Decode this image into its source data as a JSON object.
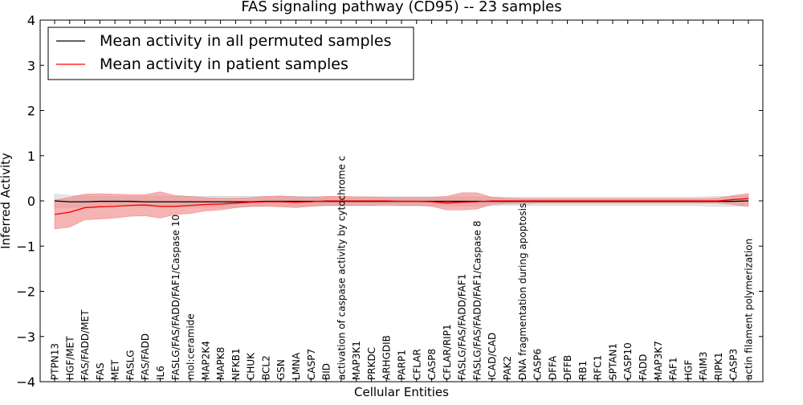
{
  "chart_data": {
    "type": "line",
    "title": "FAS signaling pathway (CD95) -- 23 samples",
    "xlabel": "Cellular Entities",
    "ylabel": "Inferred Activity",
    "ylim": [
      -4,
      4
    ],
    "yticks": [
      -4,
      -3,
      -2,
      -1,
      0,
      1,
      2,
      3,
      4
    ],
    "ytick_labels": [
      "−4",
      "−3",
      "−2",
      "−1",
      "0",
      "1",
      "2",
      "3",
      "4"
    ],
    "grid": false,
    "legend_position": "top-left",
    "categories": [
      "PTPN13",
      "HGF/MET",
      "FAS/FADD/MET",
      "FAS",
      "MET",
      "FASLG",
      "FAS/FADD",
      "IL6",
      "FASLG/FAS/FADD/FAF1/Caspase 10",
      "mol:ceramide",
      "MAP2K4",
      "MAPK8",
      "NFKB1",
      "CHUK",
      "BCL2",
      "GSN",
      "LMNA",
      "CASP7",
      "BID",
      "activation of caspase activity by cytochrome c",
      "MAP3K1",
      "PRKDC",
      "ARHGDIB",
      "PARP1",
      "CFLAR",
      "CASP8",
      "CFLAR/RIP1",
      "FASLG/FAS/FADD/FAF1",
      "FASLG/FAS/FADD/FAF1/Caspase 8",
      "ICAD/CAD",
      "PAK2",
      "DNA fragmentation during apoptosis",
      "CASP6",
      "DFFA",
      "DFFB",
      "RB1",
      "RFC1",
      "SPTAN1",
      "CASP10",
      "FADD",
      "MAP3K7",
      "FAF1",
      "HGF",
      "FAIM3",
      "RIPK1",
      "CASP3",
      "actin filament polymerization"
    ],
    "series": [
      {
        "name": "Mean activity in all permuted samples",
        "color": "#000000",
        "band_color": "#cccccc",
        "values": [
          0.0,
          -0.02,
          -0.02,
          -0.01,
          -0.01,
          -0.01,
          -0.02,
          -0.02,
          -0.02,
          -0.02,
          -0.02,
          -0.02,
          -0.02,
          -0.02,
          -0.01,
          -0.01,
          -0.01,
          -0.01,
          -0.01,
          -0.01,
          -0.01,
          -0.01,
          -0.01,
          -0.01,
          -0.01,
          -0.01,
          -0.01,
          -0.01,
          -0.01,
          -0.01,
          -0.01,
          -0.01,
          -0.01,
          -0.01,
          -0.01,
          -0.01,
          -0.01,
          -0.01,
          -0.01,
          -0.01,
          -0.01,
          -0.01,
          -0.01,
          -0.01,
          -0.01,
          -0.01,
          0.0
        ],
        "lower": [
          -0.15,
          -0.14,
          -0.13,
          -0.12,
          -0.12,
          -0.12,
          -0.13,
          -0.14,
          -0.14,
          -0.14,
          -0.14,
          -0.14,
          -0.14,
          -0.13,
          -0.12,
          -0.12,
          -0.12,
          -0.12,
          -0.11,
          -0.11,
          -0.11,
          -0.11,
          -0.11,
          -0.11,
          -0.11,
          -0.11,
          -0.11,
          -0.11,
          -0.11,
          -0.11,
          -0.1,
          -0.1,
          -0.1,
          -0.1,
          -0.1,
          -0.1,
          -0.1,
          -0.1,
          -0.1,
          -0.1,
          -0.1,
          -0.1,
          -0.1,
          -0.11,
          -0.12,
          -0.12,
          -0.12
        ],
        "upper": [
          0.15,
          0.12,
          0.11,
          0.1,
          0.1,
          0.1,
          0.1,
          0.1,
          0.1,
          0.1,
          0.1,
          0.1,
          0.1,
          0.1,
          0.1,
          0.1,
          0.1,
          0.1,
          0.09,
          0.09,
          0.09,
          0.09,
          0.09,
          0.09,
          0.09,
          0.09,
          0.09,
          0.09,
          0.09,
          0.09,
          0.08,
          0.08,
          0.08,
          0.08,
          0.08,
          0.08,
          0.08,
          0.08,
          0.08,
          0.08,
          0.08,
          0.08,
          0.08,
          0.09,
          0.1,
          0.1,
          0.12
        ]
      },
      {
        "name": "Mean activity in patient samples",
        "color": "#ff0000",
        "band_color": "#f08080",
        "values": [
          -0.3,
          -0.25,
          -0.15,
          -0.13,
          -0.12,
          -0.1,
          -0.09,
          -0.12,
          -0.12,
          -0.1,
          -0.08,
          -0.07,
          -0.05,
          -0.03,
          -0.02,
          -0.02,
          -0.03,
          -0.02,
          0.0,
          0.0,
          0.0,
          0.0,
          0.0,
          -0.01,
          -0.01,
          -0.02,
          -0.05,
          -0.03,
          -0.02,
          0.0,
          0.0,
          0.0,
          0.0,
          0.0,
          0.0,
          0.0,
          0.0,
          0.0,
          0.0,
          0.0,
          0.0,
          0.0,
          0.0,
          0.0,
          0.0,
          0.03,
          0.05
        ],
        "lower": [
          -0.62,
          -0.58,
          -0.42,
          -0.4,
          -0.38,
          -0.34,
          -0.33,
          -0.38,
          -0.3,
          -0.28,
          -0.22,
          -0.2,
          -0.15,
          -0.12,
          -0.12,
          -0.13,
          -0.15,
          -0.12,
          -0.1,
          -0.1,
          -0.1,
          -0.1,
          -0.09,
          -0.1,
          -0.1,
          -0.12,
          -0.2,
          -0.2,
          -0.18,
          -0.08,
          -0.06,
          -0.06,
          -0.05,
          -0.05,
          -0.05,
          -0.05,
          -0.05,
          -0.05,
          -0.05,
          -0.05,
          -0.05,
          -0.05,
          -0.05,
          -0.05,
          -0.05,
          -0.08,
          -0.12
        ],
        "upper": [
          0.02,
          0.08,
          0.15,
          0.16,
          0.15,
          0.14,
          0.14,
          0.2,
          0.12,
          0.1,
          0.07,
          0.06,
          0.06,
          0.07,
          0.1,
          0.11,
          0.09,
          0.08,
          0.1,
          0.1,
          0.09,
          0.09,
          0.08,
          0.08,
          0.08,
          0.08,
          0.1,
          0.18,
          0.18,
          0.08,
          0.06,
          0.05,
          0.05,
          0.05,
          0.05,
          0.05,
          0.05,
          0.05,
          0.05,
          0.05,
          0.05,
          0.05,
          0.05,
          0.05,
          0.06,
          0.12,
          0.16
        ]
      }
    ]
  }
}
